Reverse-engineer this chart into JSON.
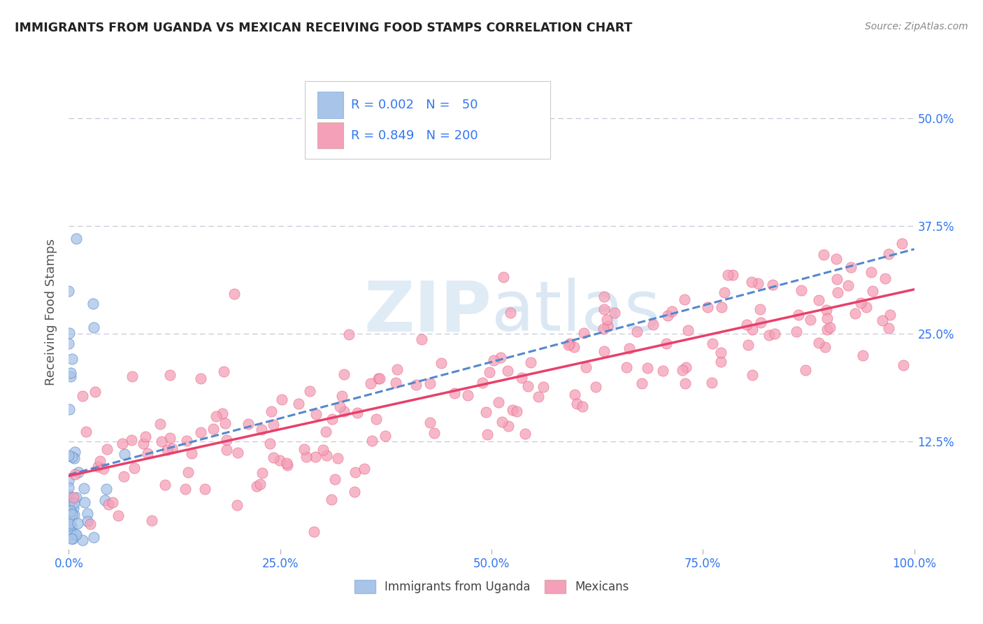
{
  "title": "IMMIGRANTS FROM UGANDA VS MEXICAN RECEIVING FOOD STAMPS CORRELATION CHART",
  "source": "Source: ZipAtlas.com",
  "ylabel": "Receiving Food Stamps",
  "watermark_zip": "ZIP",
  "watermark_atlas": "atlas",
  "legend_uganda": "Immigrants from Uganda",
  "legend_mexican": "Mexicans",
  "R_uganda": 0.002,
  "N_uganda": 50,
  "R_mexican": 0.849,
  "N_mexican": 200,
  "color_uganda": "#a8c4e8",
  "color_mexican": "#f4a0b8",
  "color_trendline_uganda": "#5588cc",
  "color_trendline_mexican": "#e8406a",
  "color_grid": "#c8c8d8",
  "xlim": [
    0,
    1
  ],
  "ylim": [
    0,
    0.55
  ],
  "xticks": [
    0.0,
    0.25,
    0.5,
    0.75,
    1.0
  ],
  "xtick_labels": [
    "0.0%",
    "25.0%",
    "50.0%",
    "75.0%",
    "100.0%"
  ],
  "yticks": [
    0.125,
    0.25,
    0.375,
    0.5
  ],
  "ytick_labels": [
    "12.5%",
    "25.0%",
    "37.5%",
    "50.0%"
  ],
  "background_color": "#ffffff",
  "title_color": "#222222",
  "axis_label_color": "#555555",
  "tick_label_color": "#3377ee",
  "legend_color": "#3377ee"
}
